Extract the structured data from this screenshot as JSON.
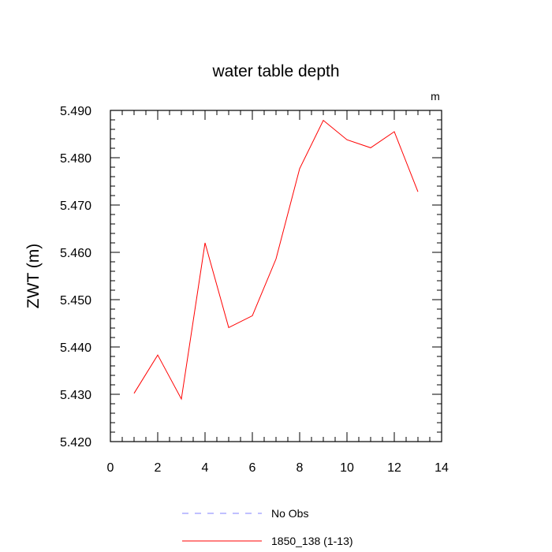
{
  "chart_data": {
    "type": "line",
    "title": "water table depth",
    "units_label": "m",
    "xlabel": "",
    "ylabel": "ZWT  (m)",
    "xlim": [
      0,
      14
    ],
    "ylim": [
      5.42,
      5.49
    ],
    "x_ticks": [
      0,
      2,
      4,
      6,
      8,
      10,
      12,
      14
    ],
    "x_tick_labels": [
      "0",
      "2",
      "4",
      "6",
      "8",
      "10",
      "12",
      "14"
    ],
    "y_ticks": [
      5.42,
      5.43,
      5.44,
      5.45,
      5.46,
      5.47,
      5.48,
      5.49
    ],
    "y_tick_labels": [
      "5.420",
      "5.430",
      "5.440",
      "5.450",
      "5.460",
      "5.470",
      "5.480",
      "5.490"
    ],
    "grid": false,
    "legend_position": "bottom",
    "series": [
      {
        "name": "No Obs",
        "color": "#8080ff",
        "dash": true,
        "x": [],
        "y": []
      },
      {
        "name": "1850_138 (1-13)",
        "color": "#ff0000",
        "dash": false,
        "x": [
          1,
          2,
          3,
          4,
          5,
          6,
          7,
          8,
          9,
          10,
          11,
          12,
          13
        ],
        "y": [
          5.4302,
          5.4383,
          5.429,
          5.462,
          5.4441,
          5.4466,
          5.4586,
          5.4777,
          5.4879,
          5.4838,
          5.4821,
          5.4855,
          5.4728
        ]
      }
    ]
  }
}
